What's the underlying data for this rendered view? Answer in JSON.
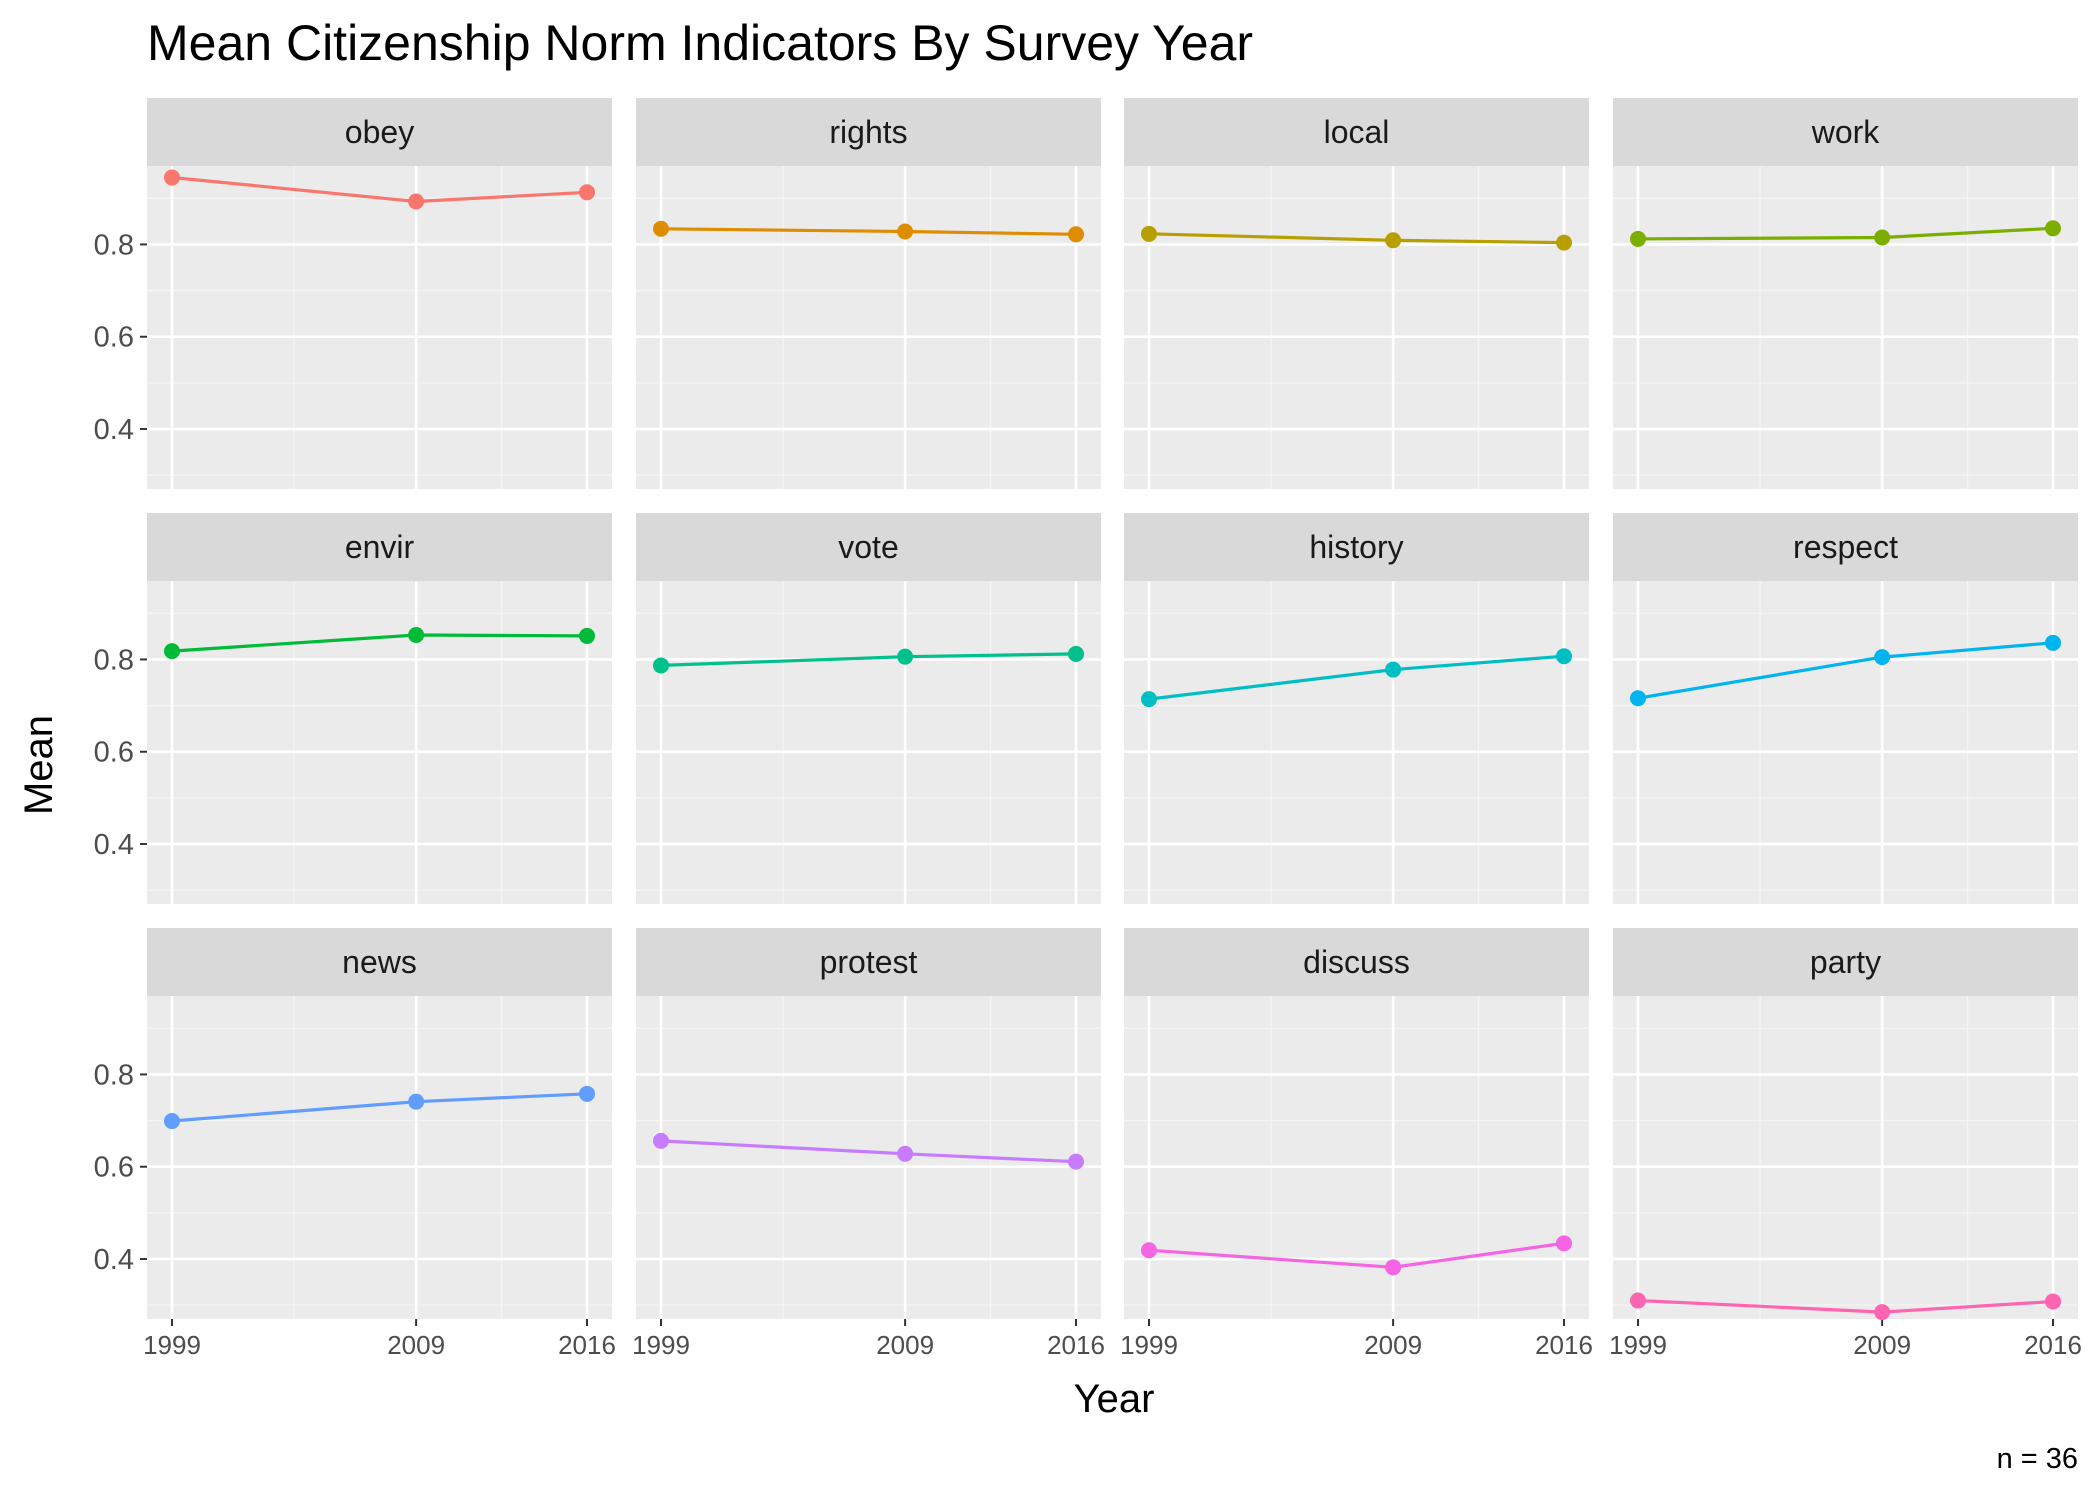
{
  "chart_data": {
    "type": "line",
    "title": "Mean Citizenship Norm Indicators By Survey Year",
    "xlabel": "Year",
    "ylabel": "Mean",
    "caption": "n = 36",
    "x": [
      1999,
      2009,
      2016
    ],
    "x_tick_labels": [
      "1999",
      "2009",
      "2016"
    ],
    "y_ticks": [
      0.4,
      0.6,
      0.8
    ],
    "y_tick_labels": [
      "0.4",
      "0.6",
      "0.8"
    ],
    "ylim": [
      0.27,
      0.97
    ],
    "grid": true,
    "legend": "none",
    "facets": [
      {
        "name": "obey",
        "color": "#F8766D",
        "values": [
          0.945,
          0.893,
          0.913
        ]
      },
      {
        "name": "rights",
        "color": "#DE8C00",
        "values": [
          0.834,
          0.828,
          0.822
        ]
      },
      {
        "name": "local",
        "color": "#B79F00",
        "values": [
          0.823,
          0.809,
          0.804
        ]
      },
      {
        "name": "work",
        "color": "#7CAE00",
        "values": [
          0.812,
          0.815,
          0.835
        ]
      },
      {
        "name": "envir",
        "color": "#00BA38",
        "values": [
          0.818,
          0.853,
          0.851
        ]
      },
      {
        "name": "vote",
        "color": "#00C08B",
        "values": [
          0.787,
          0.806,
          0.812
        ]
      },
      {
        "name": "history",
        "color": "#00BFC4",
        "values": [
          0.714,
          0.778,
          0.807
        ]
      },
      {
        "name": "respect",
        "color": "#00B4F0",
        "values": [
          0.716,
          0.805,
          0.836
        ]
      },
      {
        "name": "news",
        "color": "#619CFF",
        "values": [
          0.699,
          0.741,
          0.758
        ]
      },
      {
        "name": "protest",
        "color": "#C77CFF",
        "values": [
          0.656,
          0.628,
          0.611
        ]
      },
      {
        "name": "discuss",
        "color": "#F564E3",
        "values": [
          0.419,
          0.382,
          0.434
        ]
      },
      {
        "name": "party",
        "color": "#FF64B0",
        "values": [
          0.31,
          0.285,
          0.308
        ]
      }
    ]
  }
}
